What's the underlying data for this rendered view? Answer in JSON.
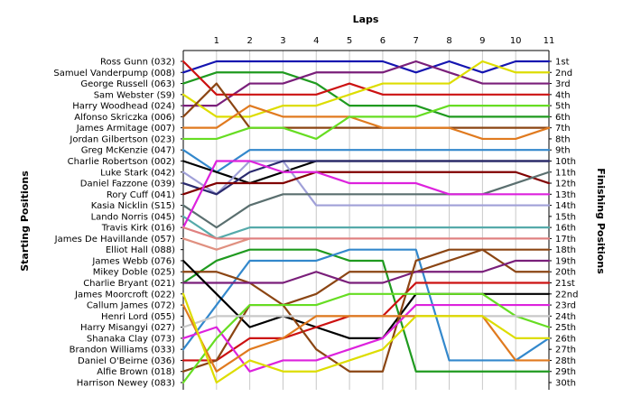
{
  "chart_data": {
    "type": "line",
    "title": "Laps",
    "xlabel": "Laps",
    "ylabel_left": "Starting Positions",
    "ylabel_right": "Finishing Positions",
    "x": [
      0,
      1,
      2,
      3,
      4,
      5,
      6,
      7,
      8,
      9,
      10,
      11
    ],
    "x_tick_labels": [
      "1",
      "2",
      "3",
      "4",
      "5",
      "6",
      "7",
      "8",
      "9",
      "10",
      "11"
    ],
    "y_range": [
      1,
      30
    ],
    "y_inverted": true,
    "grid": "vertical",
    "starting_positions": [
      "Ross Gunn (032)",
      "Samuel Vanderpump (008)",
      "George Russell (063)",
      "Sam Webster (S9)",
      "Harry Woodhead (024)",
      "Alfonso Skriczka (006)",
      "James Armitage (007)",
      "Jordan Gilbertson (023)",
      "Greg McKenzie (047)",
      "Charlie Robertson (002)",
      "Luke Stark (042)",
      "Daniel Fazzone (039)",
      "Rory Cuff (041)",
      "Kasia Nicklin (S15)",
      "Lando Norris (045)",
      "Travis Kirk (016)",
      "James De Havillande (057)",
      "Elliot Hall (088)",
      "James Webb (076)",
      "Mikey Doble (025)",
      "Charlie Bryant (021)",
      "James Moorcroft (022)",
      "Callum James (072)",
      "Henri Lord (055)",
      "Harry Misangyi (027)",
      "Shanaka Clay (073)",
      "Brandon Williams (033)",
      "Daniel O'Beirne (036)",
      "Alfie Brown (018)",
      "Harrison Newey (083)"
    ],
    "finishing_positions": [
      "1st",
      "2nd",
      "3rd",
      "4th",
      "5th",
      "6th",
      "7th",
      "8th",
      "9th",
      "10th",
      "11th",
      "12th",
      "13th",
      "14th",
      "15th",
      "16th",
      "17th",
      "18th",
      "19th",
      "20th",
      "21st",
      "22nd",
      "23rd",
      "24th",
      "25th",
      "26th",
      "27th",
      "28th",
      "29th",
      "30th"
    ],
    "series": [
      {
        "color": "#1515b0",
        "values": [
          2,
          1,
          1,
          1,
          1,
          1,
          1,
          2,
          1,
          2,
          1,
          1
        ]
      },
      {
        "color": "#1f9a1f",
        "values": [
          3,
          2,
          2,
          2,
          3,
          5,
          5,
          5,
          6,
          6,
          6,
          6
        ]
      },
      {
        "color": "#7a1f7a",
        "values": [
          5,
          5,
          3,
          3,
          2,
          2,
          2,
          1,
          2,
          3,
          3,
          3
        ]
      },
      {
        "color": "#cc1111",
        "values": [
          1,
          4,
          4,
          4,
          4,
          3,
          4,
          4,
          4,
          4,
          4,
          4
        ]
      },
      {
        "color": "#dddd00",
        "values": [
          4,
          6,
          6,
          5,
          5,
          4,
          3,
          3,
          3,
          1,
          2,
          2
        ]
      },
      {
        "color": "#8b4513",
        "values": [
          6,
          3,
          7,
          7,
          7,
          7,
          7,
          7,
          7,
          7,
          7,
          7
        ]
      },
      {
        "color": "#e07a1f",
        "values": [
          7,
          7,
          5,
          6,
          6,
          6,
          7,
          7,
          7,
          8,
          8,
          7
        ]
      },
      {
        "color": "#66dd22",
        "values": [
          8,
          8,
          7,
          7,
          8,
          6,
          6,
          6,
          5,
          5,
          5,
          5
        ]
      },
      {
        "color": "#3388cc",
        "values": [
          9,
          11,
          9,
          9,
          9,
          9,
          9,
          9,
          9,
          9,
          9,
          9
        ]
      },
      {
        "color": "#000000",
        "values": [
          10,
          11,
          12,
          11,
          10,
          10,
          10,
          10,
          10,
          10,
          10,
          10
        ]
      },
      {
        "color": "#a0a0d8",
        "values": [
          11,
          13,
          10,
          10,
          14,
          14,
          14,
          14,
          14,
          14,
          14,
          14
        ]
      },
      {
        "color": "#2a2a6e",
        "values": [
          12,
          13,
          11,
          10,
          10,
          10,
          10,
          10,
          10,
          10,
          10,
          10
        ]
      },
      {
        "color": "#800000",
        "values": [
          13,
          12,
          12,
          12,
          11,
          11,
          11,
          11,
          11,
          11,
          11,
          12
        ]
      },
      {
        "color": "#5a6f6f",
        "values": [
          14,
          16,
          14,
          13,
          13,
          13,
          13,
          13,
          13,
          13,
          12,
          11
        ]
      },
      {
        "color": "#55aaaa",
        "values": [
          15,
          17,
          16,
          16,
          16,
          16,
          16,
          16,
          16,
          16,
          16,
          16
        ]
      },
      {
        "color": "#dd22dd",
        "values": [
          16,
          10,
          10,
          11,
          11,
          12,
          12,
          12,
          13,
          13,
          13,
          13
        ]
      },
      {
        "color": "#e09080",
        "values": [
          17,
          18,
          17,
          17,
          17,
          17,
          17,
          17,
          17,
          17,
          17,
          17
        ]
      },
      {
        "color": "#e08080",
        "values": [
          16,
          17,
          17,
          17,
          17,
          17,
          17,
          17,
          17,
          17,
          17,
          17
        ]
      },
      {
        "color": "#1f9a1f",
        "values": [
          21,
          19,
          18,
          18,
          18,
          19,
          19,
          29,
          29,
          29,
          29,
          29
        ]
      },
      {
        "color": "#3388cc",
        "values": [
          27,
          23,
          19,
          19,
          19,
          18,
          18,
          18,
          28,
          28,
          28,
          26
        ]
      },
      {
        "color": "#8b4513",
        "values": [
          20,
          20,
          21,
          23,
          22,
          20,
          20,
          20,
          19,
          18,
          20,
          20
        ]
      },
      {
        "color": "#7a1f7a",
        "values": [
          21,
          21,
          21,
          21,
          20,
          21,
          21,
          20,
          20,
          20,
          19,
          19
        ]
      },
      {
        "color": "#000000",
        "values": [
          19,
          22,
          25,
          24,
          25,
          26,
          26,
          22,
          22,
          22,
          22,
          22
        ]
      },
      {
        "color": "#cc1111",
        "values": [
          28,
          28,
          26,
          26,
          25,
          24,
          24,
          21,
          21,
          21,
          21,
          21
        ]
      },
      {
        "color": "#8b4513",
        "values": [
          29,
          28,
          23,
          23,
          27,
          29,
          29,
          19,
          18,
          18,
          18,
          18
        ]
      },
      {
        "color": "#dd22dd",
        "values": [
          26,
          25,
          29,
          28,
          28,
          27,
          26,
          23,
          23,
          23,
          23,
          23
        ]
      },
      {
        "color": "#66dd22",
        "values": [
          30,
          26,
          23,
          23,
          23,
          22,
          22,
          22,
          22,
          22,
          24,
          25
        ]
      },
      {
        "color": "#c8c8c8",
        "values": [
          25,
          24,
          24,
          24,
          24,
          24,
          24,
          24,
          24,
          24,
          24,
          24
        ]
      },
      {
        "color": "#e07a1f",
        "values": [
          23,
          29,
          27,
          26,
          24,
          24,
          24,
          24,
          24,
          24,
          28,
          28
        ]
      },
      {
        "color": "#dddd00",
        "values": [
          22,
          30,
          28,
          29,
          29,
          28,
          27,
          24,
          24,
          24,
          26,
          26
        ]
      }
    ]
  }
}
